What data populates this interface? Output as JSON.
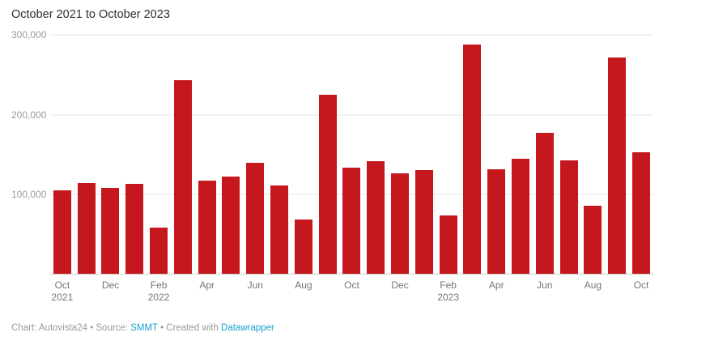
{
  "header": {
    "title": "October 2021 to October 2023"
  },
  "colors": {
    "bar": "#c5171e",
    "link": "#18a1cd",
    "gridline": "#e4e4e4",
    "axis_text": "#9b9b9b"
  },
  "footer": {
    "part1": "Chart: Autovista24 • Source: ",
    "source_label": "SMMT",
    "part2": " • Created with ",
    "tool_label": "Datawrapper"
  },
  "chart_data": {
    "type": "bar",
    "title": "October 2021 to October 2023",
    "ylim": [
      0,
      300000
    ],
    "grid": true,
    "y_ticks": [
      {
        "value": 100000,
        "label": "100,000"
      },
      {
        "value": 200000,
        "label": "200,000"
      },
      {
        "value": 300000,
        "label": "300,000"
      }
    ],
    "x": [
      "Oct 2021",
      "Nov 2021",
      "Dec 2021",
      "Jan 2022",
      "Feb 2022",
      "Mar 2022",
      "Apr 2022",
      "May 2022",
      "Jun 2022",
      "Jul 2022",
      "Aug 2022",
      "Sep 2022",
      "Oct 2022",
      "Nov 2022",
      "Dec 2022",
      "Jan 2023",
      "Feb 2023",
      "Mar 2023",
      "Apr 2023",
      "May 2023",
      "Jun 2023",
      "Jul 2023",
      "Aug 2023",
      "Sep 2023",
      "Oct 2023"
    ],
    "values": [
      105000,
      115000,
      108000,
      114000,
      59000,
      243000,
      118000,
      123000,
      140000,
      111000,
      69000,
      225000,
      134000,
      142000,
      127000,
      131000,
      74000,
      288000,
      132000,
      145000,
      177000,
      143000,
      86000,
      272000,
      153000
    ],
    "x_ticks": [
      {
        "index": 0,
        "month": "Oct",
        "year": "2021"
      },
      {
        "index": 2,
        "month": "Dec"
      },
      {
        "index": 4,
        "month": "Feb",
        "year": "2022"
      },
      {
        "index": 6,
        "month": "Apr"
      },
      {
        "index": 8,
        "month": "Jun"
      },
      {
        "index": 10,
        "month": "Aug"
      },
      {
        "index": 12,
        "month": "Oct"
      },
      {
        "index": 14,
        "month": "Dec"
      },
      {
        "index": 16,
        "month": "Feb",
        "year": "2023"
      },
      {
        "index": 18,
        "month": "Apr"
      },
      {
        "index": 20,
        "month": "Jun"
      },
      {
        "index": 22,
        "month": "Aug"
      },
      {
        "index": 24,
        "month": "Oct"
      }
    ]
  }
}
